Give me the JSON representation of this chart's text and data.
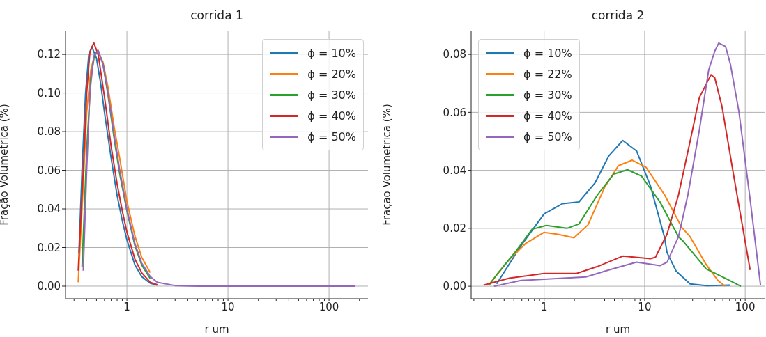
{
  "chart_data": [
    {
      "type": "line",
      "title": "corrida 1",
      "xlabel": "r um",
      "ylabel": "Fração Volumetrica (%)",
      "log": "x",
      "grid": true,
      "legend": "top right",
      "xlim": [
        0.247,
        243
      ],
      "ylim": [
        -0.0065,
        0.1323
      ],
      "xticks": [
        {
          "value": 0.3,
          "label": null
        },
        {
          "value": 0.4,
          "label": null
        },
        {
          "value": 0.5,
          "label": null
        },
        {
          "value": 0.6,
          "label": null
        },
        {
          "value": 0.7,
          "label": null
        },
        {
          "value": 0.8,
          "label": null
        },
        {
          "value": 0.9,
          "label": null
        },
        1,
        {
          "value": 2,
          "label": null
        },
        {
          "value": 3,
          "label": null
        },
        {
          "value": 4,
          "label": null
        },
        {
          "value": 5,
          "label": null
        },
        {
          "value": 6,
          "label": null
        },
        {
          "value": 7,
          "label": null
        },
        {
          "value": 8,
          "label": null
        },
        {
          "value": 9,
          "label": null
        },
        10,
        {
          "value": 20,
          "label": null
        },
        {
          "value": 30,
          "label": null
        },
        {
          "value": 40,
          "label": null
        },
        {
          "value": 50,
          "label": null
        },
        {
          "value": 60,
          "label": null
        },
        {
          "value": 70,
          "label": null
        },
        {
          "value": 80,
          "label": null
        },
        {
          "value": 90,
          "label": null
        },
        100,
        {
          "value": 200,
          "label": null
        }
      ],
      "yticks": [
        {
          "value": 0,
          "label": "0.00"
        },
        {
          "value": 0.02,
          "label": "0.02"
        },
        {
          "value": 0.04,
          "label": "0.04"
        },
        {
          "value": 0.06,
          "label": "0.06"
        },
        {
          "value": 0.08,
          "label": "0.08"
        },
        {
          "value": 0.1,
          "label": "0.10"
        },
        {
          "value": 0.12,
          "label": "0.12"
        }
      ],
      "series": [
        {
          "name": "ϕ = 10%",
          "color": "#1f77b4",
          "x": [
            0.335,
            0.36,
            0.39,
            0.42,
            0.45,
            0.5,
            0.55,
            0.6,
            0.7,
            0.8,
            0.9,
            1,
            1.2,
            1.4,
            1.7,
            2
          ],
          "values": [
            0.017,
            0.06,
            0.1,
            0.12,
            0.124,
            0.118,
            0.105,
            0.09,
            0.066,
            0.047,
            0.034,
            0.024,
            0.011,
            0.005,
            0.0015,
            0.0005
          ]
        },
        {
          "name": "ϕ = 20%",
          "color": "#ff7f0e",
          "x": [
            0.33,
            0.36,
            0.4,
            0.44,
            0.48,
            0.52,
            0.58,
            0.65,
            0.75,
            0.85,
            1,
            1.2,
            1.4,
            1.7
          ],
          "values": [
            0.002,
            0.04,
            0.09,
            0.112,
            0.12,
            0.121,
            0.116,
            0.103,
            0.082,
            0.066,
            0.044,
            0.026,
            0.015,
            0.007
          ]
        },
        {
          "name": "ϕ = 30%",
          "color": "#2ca02c",
          "x": [
            0.36,
            0.4,
            0.44,
            0.48,
            0.52,
            0.58,
            0.65,
            0.75,
            0.85,
            1,
            1.2,
            1.4,
            1.7
          ],
          "values": [
            0.01,
            0.07,
            0.108,
            0.12,
            0.122,
            0.115,
            0.099,
            0.076,
            0.058,
            0.039,
            0.021,
            0.011,
            0.004
          ]
        },
        {
          "name": "ϕ = 40%",
          "color": "#d62728",
          "x": [
            0.33,
            0.37,
            0.4,
            0.43,
            0.47,
            0.52,
            0.6,
            0.7,
            0.8,
            0.9,
            1,
            1.2,
            1.4,
            1.7,
            2
          ],
          "values": [
            0.008,
            0.06,
            0.1,
            0.121,
            0.126,
            0.12,
            0.098,
            0.072,
            0.053,
            0.039,
            0.028,
            0.014,
            0.007,
            0.002,
            0.0007
          ]
        },
        {
          "name": "ϕ = 50%",
          "color": "#9467bd",
          "x": [
            0.37,
            0.4,
            0.43,
            0.47,
            0.52,
            0.58,
            0.65,
            0.75,
            0.85,
            1,
            1.2,
            1.4,
            1.7,
            2,
            3,
            5,
            10,
            30,
            100,
            180
          ],
          "values": [
            0.008,
            0.06,
            0.1,
            0.119,
            0.122,
            0.115,
            0.1,
            0.078,
            0.06,
            0.04,
            0.022,
            0.012,
            0.005,
            0.002,
            0.0003,
            0,
            0,
            0,
            0,
            0
          ]
        }
      ]
    },
    {
      "type": "line",
      "title": "corrida 2",
      "xlabel": "r um",
      "ylabel": "Fração Volumetrica (%)",
      "log": "x",
      "grid": true,
      "legend": "top left",
      "xlim": [
        0.188,
        156
      ],
      "ylim": [
        -0.0043,
        0.0882
      ],
      "xticks": [
        {
          "value": 0.2,
          "label": null
        },
        {
          "value": 0.3,
          "label": null
        },
        {
          "value": 0.4,
          "label": null
        },
        {
          "value": 0.5,
          "label": null
        },
        {
          "value": 0.6,
          "label": null
        },
        {
          "value": 0.7,
          "label": null
        },
        {
          "value": 0.8,
          "label": null
        },
        {
          "value": 0.9,
          "label": null
        },
        1,
        {
          "value": 2,
          "label": null
        },
        {
          "value": 3,
          "label": null
        },
        {
          "value": 4,
          "label": null
        },
        {
          "value": 5,
          "label": null
        },
        {
          "value": 6,
          "label": null
        },
        {
          "value": 7,
          "label": null
        },
        {
          "value": 8,
          "label": null
        },
        {
          "value": 9,
          "label": null
        },
        10,
        {
          "value": 20,
          "label": null
        },
        {
          "value": 30,
          "label": null
        },
        {
          "value": 40,
          "label": null
        },
        {
          "value": 50,
          "label": null
        },
        {
          "value": 60,
          "label": null
        },
        {
          "value": 70,
          "label": null
        },
        {
          "value": 80,
          "label": null
        },
        {
          "value": 90,
          "label": null
        },
        100
      ],
      "yticks": [
        {
          "value": 0,
          "label": "0.00"
        },
        {
          "value": 0.02,
          "label": "0.02"
        },
        {
          "value": 0.04,
          "label": "0.04"
        },
        {
          "value": 0.06,
          "label": "0.06"
        },
        {
          "value": 0.08,
          "label": "0.08"
        }
      ],
      "series": [
        {
          "name": "ϕ = 10%",
          "color": "#1f77b4",
          "x": [
            0.337,
            0.588,
            1,
            1.53,
            2.22,
            3.2,
            4.4,
            6.05,
            8.3,
            11.4,
            15.7,
            16.7,
            20.6,
            28.3,
            40.9,
            70,
            71.5
          ],
          "values": [
            0.0008,
            0.014,
            0.025,
            0.0285,
            0.0291,
            0.0356,
            0.045,
            0.0503,
            0.0467,
            0.0347,
            0.0171,
            0.0116,
            0.0052,
            0.0008,
            0.0002,
            0.0004,
            0.0002
          ]
        },
        {
          "name": "ϕ = 22%",
          "color": "#ff7f0e",
          "x": [
            0.28,
            0.45,
            0.65,
            1,
            1.37,
            1.98,
            2.73,
            3.98,
            5.47,
            7.53,
            10.3,
            15.8,
            23.4,
            28.3,
            40.9,
            53.5,
            62.8
          ],
          "values": [
            0.0004,
            0.0092,
            0.0147,
            0.0186,
            0.0179,
            0.0167,
            0.0212,
            0.034,
            0.0416,
            0.0435,
            0.0411,
            0.0315,
            0.0203,
            0.0171,
            0.0075,
            0.002,
            0
          ]
        },
        {
          "name": "ϕ = 30%",
          "color": "#2ca02c",
          "x": [
            0.287,
            0.344,
            0.53,
            0.76,
            1.05,
            1.69,
            2.22,
            3.39,
            4.92,
            6.76,
            9.3,
            14.2,
            21.7,
            24.2,
            40.9,
            62.8,
            90.6
          ],
          "values": [
            0.0006,
            0.0044,
            0.0123,
            0.0197,
            0.021,
            0.02,
            0.0215,
            0.0315,
            0.0387,
            0.0402,
            0.038,
            0.0291,
            0.0171,
            0.0155,
            0.006,
            0.0028,
            0
          ]
        },
        {
          "name": "ϕ = 40%",
          "color": "#d62728",
          "x": [
            0.25,
            0.45,
            1,
            2.1,
            3.39,
            6.05,
            11.4,
            12.8,
            16.7,
            21.7,
            28.3,
            35,
            45.7,
            49.8,
            58.8,
            77,
            112
          ],
          "values": [
            0.0004,
            0.0028,
            0.0044,
            0.0044,
            0.0068,
            0.0104,
            0.0095,
            0.01,
            0.018,
            0.0315,
            0.05,
            0.0651,
            0.073,
            0.0719,
            0.062,
            0.038,
            0.0056
          ]
        },
        {
          "name": "ϕ = 50%",
          "color": "#9467bd",
          "x": [
            0.317,
            0.59,
            1,
            2.6,
            4.4,
            8.3,
            14.2,
            16.7,
            21.7,
            26.9,
            35,
            43.4,
            49.8,
            54.5,
            63.9,
            71.5,
            86.6,
            112,
            142
          ],
          "values": [
            0,
            0.002,
            0.0024,
            0.0032,
            0.0056,
            0.0083,
            0.0071,
            0.0083,
            0.0171,
            0.0315,
            0.0539,
            0.0747,
            0.0811,
            0.0839,
            0.0827,
            0.0764,
            0.0603,
            0.0299,
            0.0004
          ]
        }
      ]
    }
  ]
}
